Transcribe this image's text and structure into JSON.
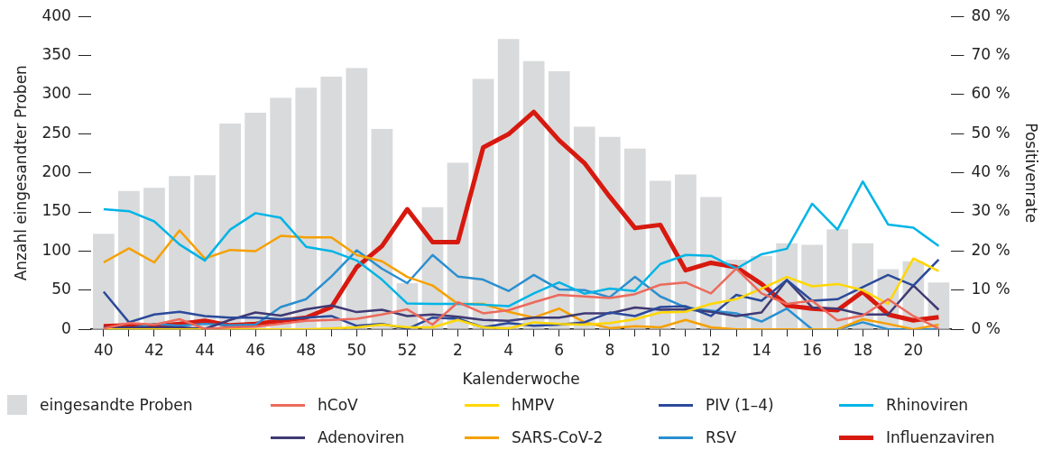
{
  "chart_data": {
    "type": "bar",
    "xlabel": "Kalenderwoche",
    "ylabel": "Anzahl eingesandter Proben",
    "y2label": "Positivenrate",
    "categories": [
      "40",
      null,
      "42",
      null,
      "44",
      null,
      "46",
      null,
      "48",
      null,
      "50",
      null,
      "52",
      null,
      "2",
      null,
      "4",
      null,
      "6",
      null,
      "8",
      null,
      "10",
      null,
      "12",
      null,
      "14",
      null,
      "16",
      null,
      "18",
      null,
      "20",
      null
    ],
    "ylim": [
      0,
      400
    ],
    "yticks": [
      0,
      50,
      100,
      150,
      200,
      250,
      300,
      350,
      400
    ],
    "y2lim": [
      0,
      80
    ],
    "y2ticks": [
      {
        "value": 0,
        "label": "0 %"
      },
      {
        "value": 10,
        "label": "10 %"
      },
      {
        "value": 20,
        "label": "20 %"
      },
      {
        "value": 30,
        "label": "30 %"
      },
      {
        "value": 40,
        "label": "40 %"
      },
      {
        "value": 50,
        "label": "50 %"
      },
      {
        "value": 60,
        "label": "60 %"
      },
      {
        "value": 70,
        "label": "70 %"
      },
      {
        "value": 80,
        "label": "80 %"
      }
    ],
    "grid": false,
    "legend": "bottom",
    "series": [
      {
        "name": "eingesandte Proben",
        "color": "#d9dadb",
        "values": [
          122,
          177,
          181,
          196,
          197,
          263,
          277,
          296,
          309,
          323,
          334,
          256,
          59,
          156,
          213,
          320,
          371,
          343,
          330,
          259,
          246,
          231,
          190,
          198,
          169,
          89,
          94,
          110,
          108,
          128,
          110,
          77,
          87,
          60
        ]
      },
      {
        "name": "hCoV",
        "type": "line",
        "axis": "y2",
        "color": "#ec6a5c",
        "values": [
          0.2,
          1.6,
          1.2,
          2.6,
          0.1,
          0.5,
          0.7,
          1.4,
          2.2,
          2.4,
          2.7,
          3.8,
          5.1,
          1.2,
          6.9,
          4.1,
          4.9,
          6.9,
          8.8,
          8.4,
          8.0,
          9.0,
          11.4,
          12.0,
          9.2,
          15.5,
          9.2,
          6.5,
          7.3,
          2.3,
          3.5,
          7.7,
          3.4,
          0.2
        ]
      },
      {
        "name": "hMPV",
        "type": "line",
        "axis": "y2",
        "color": "#ffd700",
        "values": [
          0,
          0,
          0,
          0,
          0,
          0,
          0,
          0,
          0,
          0.2,
          0.5,
          1.2,
          0.5,
          0.5,
          2.4,
          0.5,
          0.2,
          1.8,
          1.4,
          1.2,
          1.6,
          2.6,
          4.3,
          4.5,
          6.5,
          7.7,
          10.4,
          13.4,
          11.0,
          11.6,
          10.0,
          6.5,
          18.1,
          14.9
        ]
      },
      {
        "name": "PIV (1–4)",
        "type": "line",
        "axis": "y2",
        "color": "#2b4a9a",
        "values": [
          9.6,
          1.8,
          3.8,
          4.5,
          3.4,
          3.0,
          3.0,
          2.6,
          3.0,
          3.4,
          0.9,
          1.4,
          0.1,
          3.0,
          2.7,
          0.5,
          1.6,
          0.9,
          1.2,
          1.8,
          4.3,
          3.4,
          5.7,
          5.9,
          3.4,
          8.8,
          7.3,
          12.6,
          7.3,
          7.7,
          10.8,
          13.9,
          11.2,
          17.8
        ]
      },
      {
        "name": "Rhinoviren",
        "type": "line",
        "axis": "y2",
        "color": "#00b4e6",
        "values": [
          30.7,
          30.2,
          27.6,
          21.7,
          17.6,
          25.5,
          29.7,
          28.5,
          21.1,
          20.0,
          17.6,
          12.7,
          6.6,
          6.5,
          6.5,
          6.3,
          5.9,
          9.2,
          12.0,
          9.1,
          10.4,
          9.8,
          16.7,
          19.0,
          18.8,
          15.5,
          19.2,
          20.6,
          32.1,
          25.5,
          37.8,
          26.8,
          26.0,
          21.3
        ]
      },
      {
        "name": "Adenoviren",
        "type": "line",
        "axis": "y2",
        "color": "#3f3a75",
        "values": [
          0.5,
          0.5,
          0.5,
          0.5,
          0.1,
          2.4,
          4.3,
          3.5,
          5.1,
          6.1,
          4.4,
          5.0,
          3.4,
          3.8,
          3.2,
          2.4,
          2.2,
          3.0,
          3.0,
          4.1,
          4.1,
          5.6,
          5.0,
          5.1,
          4.5,
          3.4,
          4.3,
          12.6,
          5.6,
          5.3,
          3.8,
          3.8,
          11.2,
          5.0
        ]
      },
      {
        "name": "SARS-CoV-2",
        "type": "line",
        "axis": "y2",
        "color": "#f5a000",
        "values": [
          17.1,
          20.7,
          17.1,
          25.3,
          18.1,
          20.3,
          20.0,
          23.9,
          23.5,
          23.5,
          19.0,
          17.4,
          13.4,
          11.2,
          6.5,
          6.5,
          4.5,
          3.0,
          5.3,
          1.8,
          0.3,
          0.8,
          0.5,
          2.4,
          0.5,
          0,
          0,
          0,
          0,
          0,
          2.6,
          1.4,
          0,
          1.2
        ]
      },
      {
        "name": "RSV",
        "type": "line",
        "axis": "y2",
        "color": "#2a8fd0",
        "values": [
          0.2,
          0.2,
          1.4,
          0.9,
          1.4,
          1.0,
          1.2,
          5.7,
          7.7,
          13.5,
          20.2,
          15.5,
          11.8,
          19.0,
          13.5,
          12.7,
          9.8,
          13.9,
          10.2,
          10.0,
          8.2,
          13.4,
          8.4,
          5.6,
          4.8,
          4.1,
          2.0,
          5.3,
          0,
          0,
          1.8,
          0,
          0,
          0
        ]
      },
      {
        "name": "Influenzaviren",
        "type": "line",
        "axis": "y2",
        "color": "#d7190f",
        "values": [
          0.8,
          1.0,
          0.8,
          1.4,
          2.2,
          1.0,
          1.4,
          2.2,
          3.0,
          5.7,
          15.9,
          21.3,
          30.7,
          22.3,
          22.3,
          46.5,
          49.9,
          55.6,
          48.3,
          42.5,
          33.9,
          25.9,
          26.7,
          15.1,
          17.0,
          15.9,
          11.6,
          6.1,
          5.3,
          4.9,
          9.6,
          3.8,
          2.3,
          3.1
        ]
      }
    ]
  }
}
